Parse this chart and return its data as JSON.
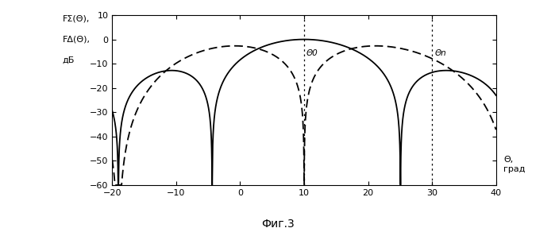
{
  "xlabel_right": "Θ,\nград",
  "ylabel_line1": "FΣ(Θ),",
  "ylabel_line2": "FΔ(Θ),",
  "ylabel_line3": "дБ",
  "xlim": [
    -20,
    40
  ],
  "ylim": [
    -60,
    10
  ],
  "xticks": [
    -20,
    -10,
    0,
    10,
    20,
    30,
    40
  ],
  "yticks": [
    -60,
    -50,
    -40,
    -30,
    -20,
    -10,
    0,
    10
  ],
  "vline1": 10,
  "vline2": 30,
  "vline1_label": "Θ0",
  "vline2_label": "Θn",
  "caption": "Фиг.3",
  "N": 8,
  "d_lambda": 0.5,
  "theta0_deg": 10,
  "background": "#ffffff",
  "line_color": "#000000"
}
